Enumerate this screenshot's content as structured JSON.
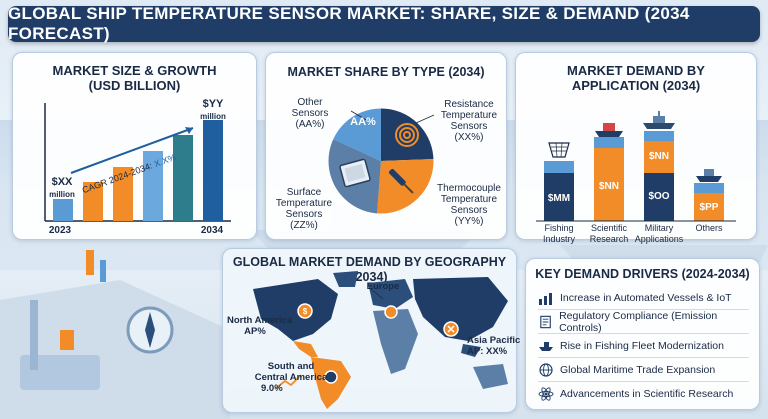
{
  "title": "GLOBAL SHIP TEMPERATURE SENSOR MARKET: SHARE, SIZE & DEMAND (2034 FORECAST)",
  "size_panel": {
    "title_line1": "MARKET SIZE & GROWTH",
    "title_line2": "(USD BILLION)",
    "start_value": "$XX",
    "start_unit": "million",
    "end_value": "$YY",
    "end_unit": "million",
    "cagr_prefix": "CAGR 2024-2034: ",
    "cagr_value": "X.X%",
    "start_year": "2023",
    "end_year": "2034",
    "colors": [
      "#5b9bd5",
      "#f28c28",
      "#f28c28",
      "#6aa8de",
      "#2e7d8c",
      "#1f5fa0"
    ]
  },
  "share_panel": {
    "title": "MARKET SHARE BY TYPE (2034)",
    "segments": [
      {
        "name_lines": [
          "Other",
          "Sensors"
        ],
        "value": "(AA%)",
        "inner": "AA%",
        "color": "#5b9bd5"
      },
      {
        "name_lines": [
          "Resistance",
          "Temperature",
          "Sensors"
        ],
        "value": "(XX%)",
        "color": "#1f3d66"
      },
      {
        "name_lines": [
          "Thermocouple",
          "Temperature",
          "Sensors"
        ],
        "value": "(YY%)",
        "color": "#f28c28"
      },
      {
        "name_lines": [
          "Surface",
          "Temperature",
          "Sensors"
        ],
        "value": "(ZZ%)",
        "color": "#5b7fa6"
      }
    ]
  },
  "demand_panel": {
    "title_line1": "MARKET DEMAND BY",
    "title_line2": "APPLICATION (2034)",
    "bars": [
      {
        "label_lines": [
          "Fishing",
          "Industry"
        ],
        "value": "$MM"
      },
      {
        "label_lines": [
          "Scientific",
          "Research"
        ],
        "value": "$NN"
      },
      {
        "label_lines": [
          "Military",
          "Applications"
        ],
        "value_top": "$NN",
        "value": "$OO"
      },
      {
        "label_lines": [
          "Others"
        ],
        "value": "$PP"
      }
    ]
  },
  "geo_panel": {
    "title": "GLOBAL MARKET DEMAND BY GEOGRAPHY (2034)",
    "regions": [
      {
        "name_lines": [
          "North America",
          "AP%"
        ]
      },
      {
        "name_lines": [
          "Europe"
        ]
      },
      {
        "name_lines": [
          "Asia Pacific",
          "AP: XX%"
        ]
      },
      {
        "name_lines": [
          "South and",
          "Central America",
          "9.0%"
        ]
      }
    ]
  },
  "drivers_panel": {
    "title": "KEY DEMAND DRIVERS (2024-2034)",
    "items": [
      {
        "label": "Increase in Automated Vessels & IoT",
        "icon": "bar-chart-icon"
      },
      {
        "label": "Regulatory Compliance (Emission Controls)",
        "icon": "document-icon"
      },
      {
        "label": "Rise in Fishing Fleet Modernization",
        "icon": "fishing-ship-icon"
      },
      {
        "label": "Global Maritime Trade Expansion",
        "icon": "globe-icon"
      },
      {
        "label": "Advancements in Scientific Research",
        "icon": "atom-icon"
      }
    ]
  }
}
